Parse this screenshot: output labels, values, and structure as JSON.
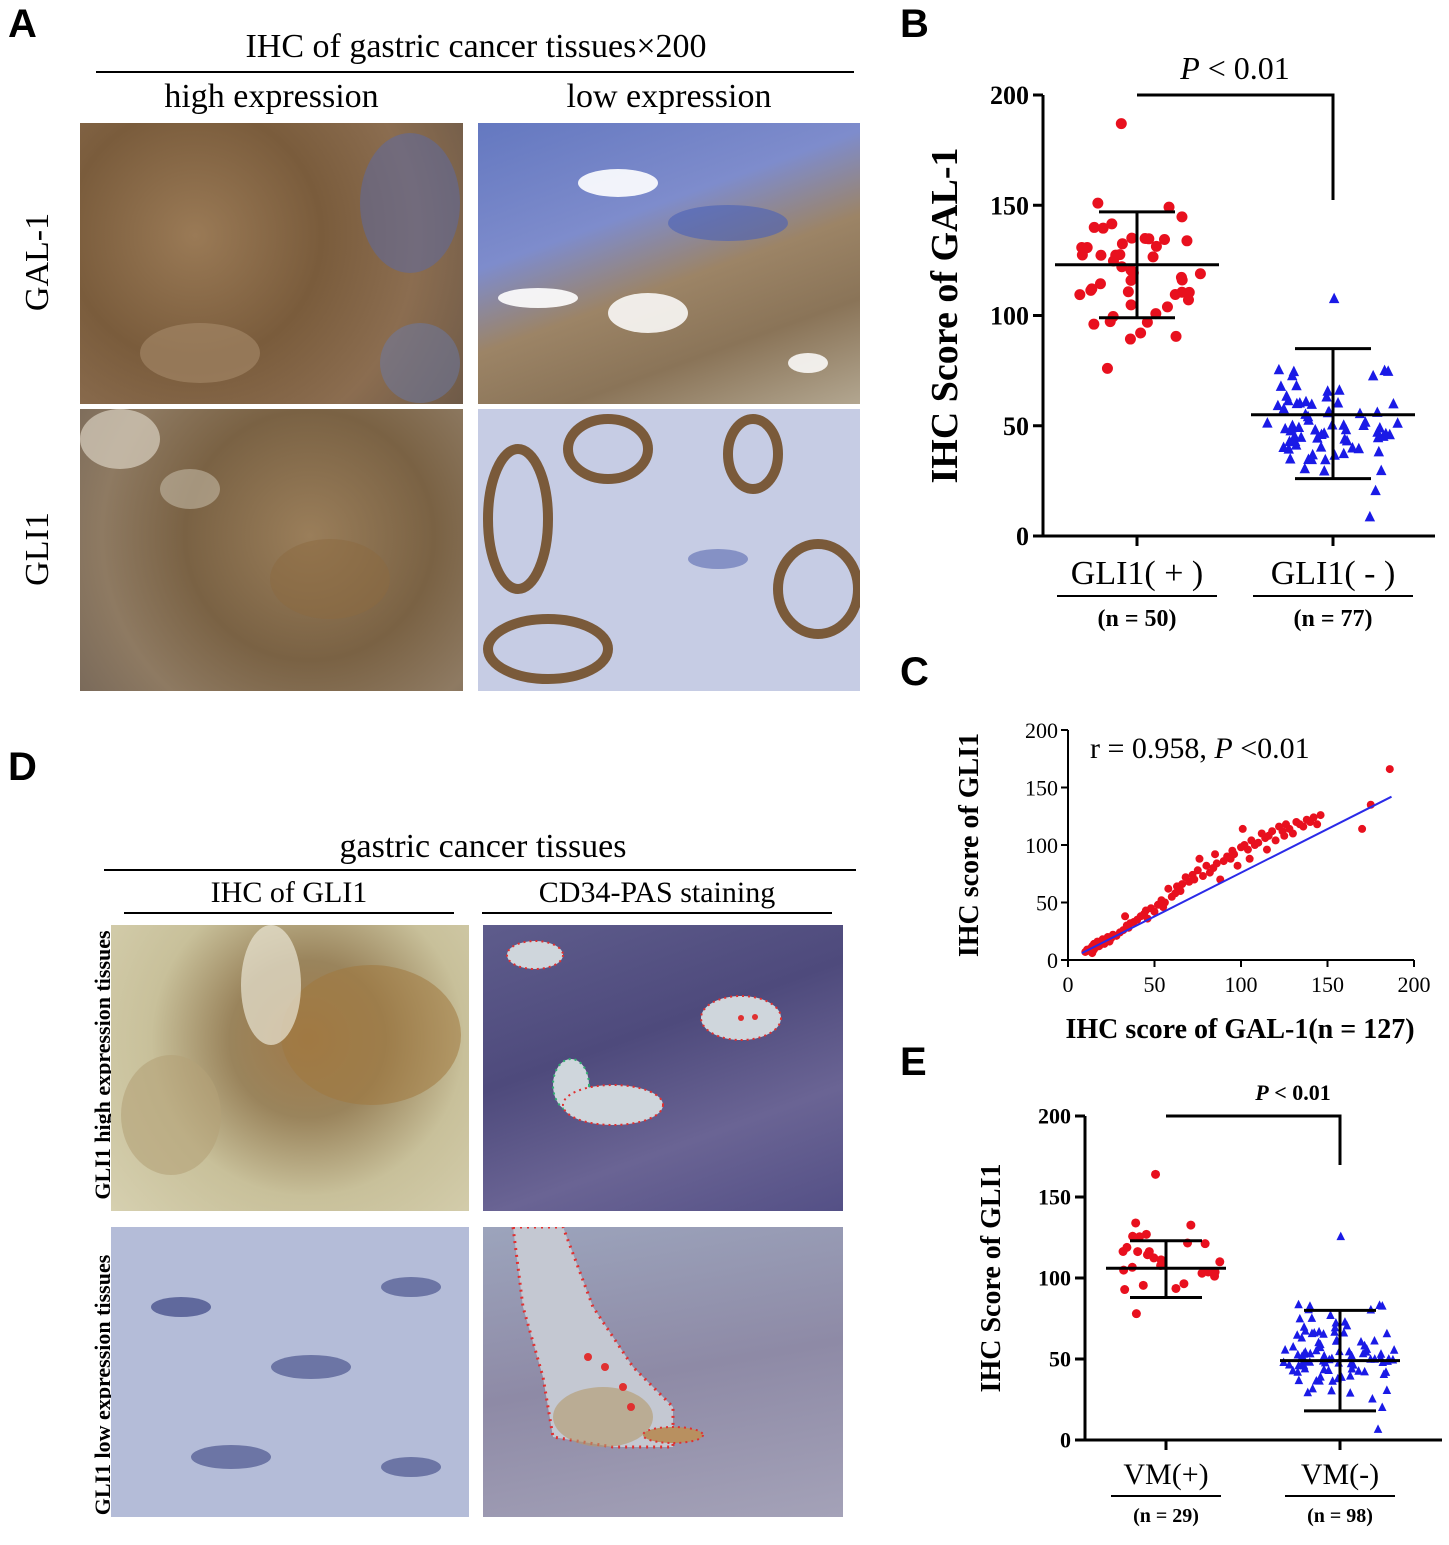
{
  "panel_letters": {
    "a": "A",
    "b": "B",
    "c": "C",
    "d": "D",
    "e": "E"
  },
  "panel_a": {
    "title": "IHC of gastric cancer tissues×200",
    "col_high": "high expression",
    "col_low": "low expression",
    "row_gal1": "GAL-1",
    "row_gli1": "GLI1"
  },
  "panel_d": {
    "title": "gastric cancer tissues",
    "col_ihc": "IHC of GLI1",
    "col_cd34": "CD34-PAS staining",
    "row_high": "GLI1 high expression tissues",
    "row_low": "GLI1 low expression tissues"
  },
  "colors": {
    "red_points": "#e8101e",
    "blue_points": "#1a1ae6",
    "fit_line": "#2a2ae8",
    "brown_stain": "#8a6a3e",
    "blue_stain": "#7484c4"
  },
  "chart_data": [
    {
      "id": "B",
      "type": "scatter",
      "subtype": "dot-plot with mean and SD bars",
      "ylabel": "IHC Score of GAL-1",
      "ylim": [
        0,
        200
      ],
      "yticks": [
        0,
        50,
        100,
        150,
        200
      ],
      "categories": [
        "GLI1( + )",
        "GLI1( - )"
      ],
      "group_n": [
        "(n = 50)",
        "(n = 77)"
      ],
      "annotation": "P < 0.01",
      "series": [
        {
          "category": "GLI1( + )",
          "marker": "circle",
          "color": "#e8101e",
          "mean": 123,
          "sd_low": 99,
          "sd_high": 147,
          "n": 50,
          "min": 76,
          "max": 187
        },
        {
          "category": "GLI1( - )",
          "marker": "triangle",
          "color": "#1a1ae6",
          "mean": 55,
          "sd_low": 26,
          "sd_high": 85,
          "n": 77,
          "min": 9,
          "max": 108
        }
      ]
    },
    {
      "id": "C",
      "type": "scatter",
      "xlabel": "IHC score of GAL-1(n = 127)",
      "ylabel": "IHC score of GLI1",
      "xlim": [
        0,
        200
      ],
      "ylim": [
        0,
        200
      ],
      "xticks": [
        0,
        50,
        100,
        150,
        200
      ],
      "yticks": [
        0,
        50,
        100,
        150,
        200
      ],
      "annotation_r": "r = 0.958,",
      "annotation_p_italic": "P",
      "annotation_p_rest": "<0.01",
      "fit_line": {
        "x": [
          8,
          187
        ],
        "y": [
          6,
          142
        ]
      },
      "points_x": [
        10,
        11,
        12,
        13,
        14,
        14,
        15,
        15,
        16,
        17,
        17,
        18,
        19,
        20,
        21,
        22,
        23,
        24,
        25,
        26,
        28,
        30,
        32,
        33,
        34,
        35,
        36,
        38,
        40,
        42,
        44,
        45,
        46,
        48,
        50,
        52,
        54,
        55,
        56,
        58,
        60,
        62,
        63,
        65,
        66,
        68,
        70,
        72,
        73,
        75,
        76,
        78,
        80,
        82,
        84,
        85,
        86,
        88,
        90,
        92,
        94,
        95,
        96,
        98,
        100,
        101,
        102,
        104,
        105,
        106,
        108,
        110,
        112,
        114,
        115,
        116,
        118,
        120,
        122,
        124,
        125,
        126,
        128,
        130,
        132,
        134,
        136,
        138,
        140,
        142,
        144,
        146,
        170,
        175,
        186
      ],
      "points_y": [
        7,
        9,
        8,
        10,
        12,
        6,
        14,
        9,
        11,
        13,
        16,
        12,
        15,
        18,
        14,
        17,
        20,
        16,
        19,
        22,
        21,
        24,
        26,
        38,
        30,
        28,
        32,
        33,
        35,
        38,
        40,
        43,
        36,
        45,
        42,
        48,
        52,
        46,
        50,
        62,
        55,
        58,
        64,
        60,
        66,
        72,
        68,
        74,
        70,
        78,
        88,
        73,
        82,
        76,
        80,
        92,
        84,
        70,
        86,
        90,
        88,
        95,
        92,
        82,
        98,
        114,
        100,
        96,
        88,
        104,
        100,
        102,
        110,
        106,
        96,
        108,
        112,
        104,
        116,
        112,
        108,
        118,
        114,
        110,
        120,
        118,
        116,
        122,
        120,
        124,
        118,
        126,
        114,
        135,
        166
      ]
    },
    {
      "id": "E",
      "type": "scatter",
      "subtype": "dot-plot with mean and SD bars",
      "ylabel": "IHC Score of GLI1",
      "ylim": [
        0,
        200
      ],
      "yticks": [
        0,
        50,
        100,
        150,
        200
      ],
      "categories": [
        "VM(+)",
        "VM(-)"
      ],
      "group_n": [
        "(n = 29)",
        "(n = 98)"
      ],
      "annotation": "P < 0.01",
      "series": [
        {
          "category": "VM(+)",
          "marker": "circle",
          "color": "#e8101e",
          "mean": 106,
          "sd_low": 88,
          "sd_high": 123,
          "n": 29,
          "min": 78,
          "max": 164
        },
        {
          "category": "VM(-)",
          "marker": "triangle",
          "color": "#1a1ae6",
          "mean": 49,
          "sd_low": 18,
          "sd_high": 80,
          "n": 98,
          "min": 7,
          "max": 126
        }
      ]
    }
  ]
}
